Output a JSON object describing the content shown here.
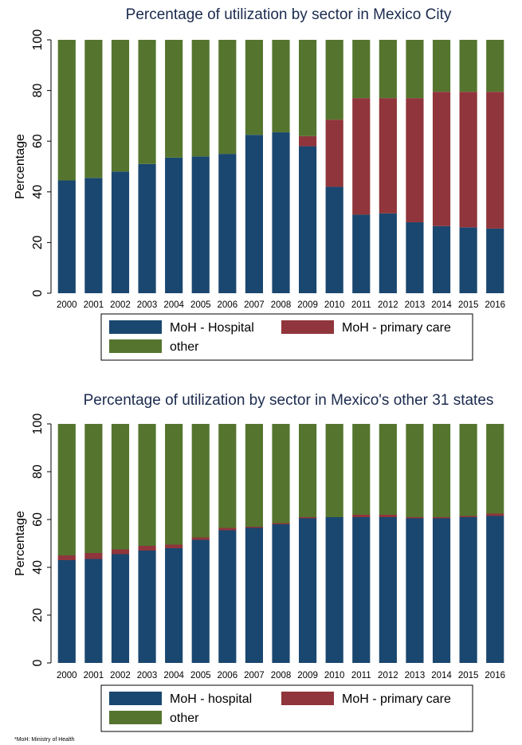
{
  "chart_data": [
    {
      "type": "bar",
      "stacked": true,
      "title": "Percentage of utilization by sector in Mexico City",
      "xlabel": "",
      "ylabel": "Percentage",
      "ylim": [
        0,
        100
      ],
      "yticks": [
        0,
        20,
        40,
        60,
        80,
        100
      ],
      "grid": false,
      "legend_position": "bottom",
      "categories": [
        "2000",
        "2001",
        "2002",
        "2003",
        "2004",
        "2005",
        "2006",
        "2007",
        "2008",
        "2009",
        "2010",
        "2011",
        "2012",
        "2013",
        "2014",
        "2015",
        "2016"
      ],
      "series": [
        {
          "name": "MoH - Hospital",
          "color": "#1a476f",
          "values": [
            44.5,
            45.5,
            48,
            51,
            53.5,
            54,
            55,
            62.5,
            63.5,
            58,
            42,
            31,
            31.5,
            28,
            26.5,
            26,
            25.5
          ]
        },
        {
          "name": "MoH - primary care",
          "color": "#90353b",
          "values": [
            0,
            0,
            0,
            0,
            0,
            0,
            0,
            0,
            0,
            4,
            26.5,
            46,
            45.5,
            49,
            53,
            53.5,
            54
          ]
        },
        {
          "name": "other",
          "color": "#55752f",
          "values": [
            55.5,
            54.5,
            52,
            49,
            46.5,
            46,
            45,
            37.5,
            36.5,
            38,
            31.5,
            23,
            23,
            23,
            20.5,
            20.5,
            20.5
          ]
        }
      ]
    },
    {
      "type": "bar",
      "stacked": true,
      "title": "Percentage of utilization by sector in Mexico's other 31 states",
      "xlabel": "",
      "ylabel": "Percentage",
      "ylim": [
        0,
        100
      ],
      "yticks": [
        0,
        20,
        40,
        60,
        80,
        100
      ],
      "grid": false,
      "legend_position": "bottom",
      "categories": [
        "2000",
        "2001",
        "2002",
        "2003",
        "2004",
        "2005",
        "2006",
        "2007",
        "2008",
        "2009",
        "2010",
        "2011",
        "2012",
        "2013",
        "2014",
        "2015",
        "2016"
      ],
      "series": [
        {
          "name": "MoH - hospital",
          "color": "#1a476f",
          "values": [
            43,
            43.5,
            45.5,
            47,
            48,
            51.5,
            55.5,
            56.5,
            58,
            60.5,
            61,
            61,
            61,
            60.5,
            60.5,
            61,
            61.5
          ]
        },
        {
          "name": "MoH - primary care",
          "color": "#90353b",
          "values": [
            2,
            2.5,
            2,
            2,
            1.5,
            1,
            1,
            0.5,
            0.5,
            0.5,
            0,
            1,
            1,
            0.5,
            0.5,
            0.5,
            1
          ]
        },
        {
          "name": "other",
          "color": "#55752f",
          "values": [
            55,
            54,
            52.5,
            51,
            50.5,
            47.5,
            43.5,
            43,
            41.5,
            39,
            39,
            38,
            38,
            39,
            39,
            38.5,
            37.5
          ]
        }
      ]
    }
  ],
  "footnote": "*MoH: Ministry of Health"
}
